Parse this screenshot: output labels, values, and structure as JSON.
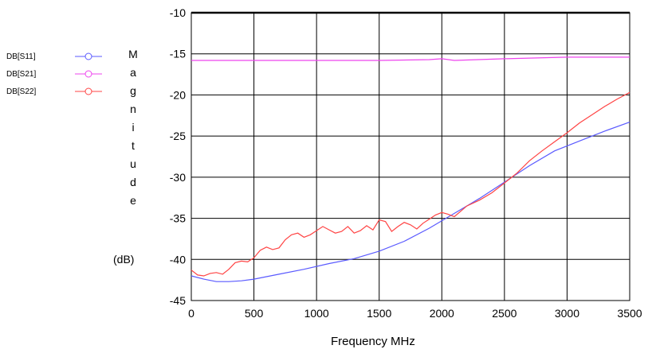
{
  "chart_data": {
    "type": "line",
    "title": "",
    "xlabel": "Frequency MHz",
    "ylabel": "Magnitude",
    "yunit": "(dB)",
    "xlim": [
      0,
      3500
    ],
    "ylim": [
      -45,
      -10
    ],
    "xticks": [
      0,
      500,
      1000,
      1500,
      2000,
      2500,
      3000,
      3500
    ],
    "yticks": [
      -10,
      -15,
      -20,
      -25,
      -30,
      -35,
      -40,
      -45
    ],
    "grid": true,
    "legend_position": "left",
    "series": [
      {
        "name": "DB[S11]",
        "color": "#5a5aff",
        "marker": "circle",
        "x": [
          0,
          100,
          200,
          300,
          400,
          500,
          700,
          900,
          1100,
          1300,
          1500,
          1700,
          1900,
          2100,
          2300,
          2500,
          2700,
          2900,
          3100,
          3300,
          3500
        ],
        "y": [
          -42.0,
          -42.4,
          -42.7,
          -42.7,
          -42.6,
          -42.4,
          -41.8,
          -41.2,
          -40.5,
          -39.9,
          -39.0,
          -37.8,
          -36.2,
          -34.4,
          -32.6,
          -30.6,
          -28.6,
          -26.8,
          -25.6,
          -24.4,
          -23.3
        ]
      },
      {
        "name": "DB[S21]",
        "color": "#ee44ee",
        "marker": "circle",
        "x": [
          0,
          500,
          1000,
          1500,
          1900,
          2000,
          2100,
          2500,
          3000,
          3500
        ],
        "y": [
          -15.8,
          -15.8,
          -15.8,
          -15.8,
          -15.7,
          -15.6,
          -15.8,
          -15.6,
          -15.4,
          -15.4
        ]
      },
      {
        "name": "DB[S22]",
        "color": "#ff4444",
        "marker": "circle",
        "x": [
          0,
          50,
          100,
          150,
          200,
          250,
          300,
          350,
          400,
          450,
          500,
          550,
          600,
          650,
          700,
          750,
          800,
          850,
          900,
          950,
          1000,
          1050,
          1100,
          1150,
          1200,
          1250,
          1300,
          1350,
          1400,
          1450,
          1500,
          1550,
          1600,
          1650,
          1700,
          1750,
          1800,
          1850,
          1900,
          1950,
          2000,
          2050,
          2100,
          2200,
          2300,
          2400,
          2500,
          2600,
          2700,
          2800,
          2900,
          3000,
          3100,
          3200,
          3300,
          3400,
          3500
        ],
        "y": [
          -41.3,
          -41.9,
          -42.0,
          -41.7,
          -41.6,
          -41.8,
          -41.2,
          -40.4,
          -40.2,
          -40.3,
          -39.8,
          -38.9,
          -38.5,
          -38.8,
          -38.6,
          -37.6,
          -37.0,
          -36.8,
          -37.3,
          -37.0,
          -36.5,
          -36.0,
          -36.4,
          -36.8,
          -36.6,
          -36.0,
          -36.8,
          -36.5,
          -35.9,
          -36.4,
          -35.2,
          -35.4,
          -36.6,
          -36.0,
          -35.5,
          -35.8,
          -36.3,
          -35.6,
          -35.1,
          -34.6,
          -34.3,
          -34.5,
          -34.8,
          -33.5,
          -32.8,
          -31.9,
          -30.7,
          -29.5,
          -28.0,
          -26.8,
          -25.7,
          -24.6,
          -23.4,
          -22.4,
          -21.4,
          -20.5,
          -19.7
        ]
      }
    ]
  }
}
